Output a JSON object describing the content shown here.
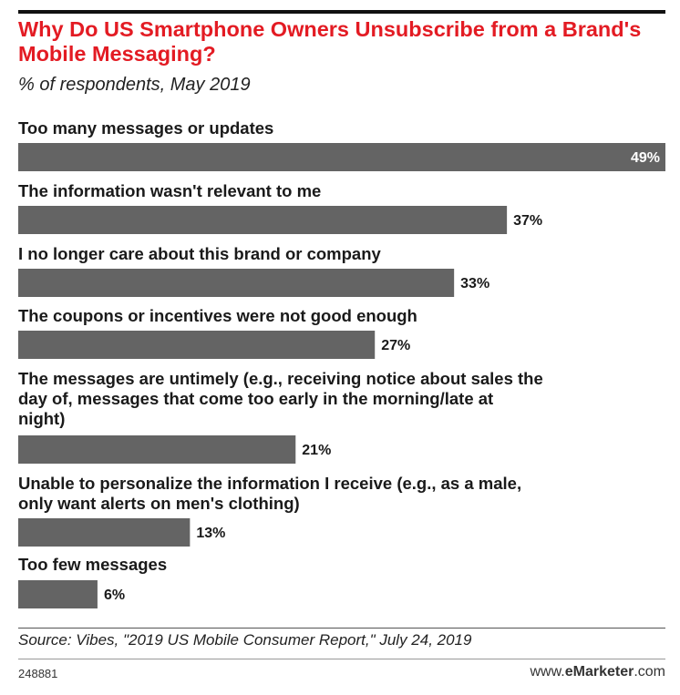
{
  "header": {
    "title": "Why Do US Smartphone Owners Unsubscribe from a Brand's Mobile Messaging?",
    "subtitle": "% of respondents, May 2019"
  },
  "colors": {
    "title": "#e31b23",
    "bar": "#646464",
    "inside_label": "#ffffff",
    "outside_label": "#1a1a1a"
  },
  "chart_data": {
    "type": "bar",
    "orientation": "horizontal",
    "categories": [
      [
        "Too many messages or updates"
      ],
      [
        "The information wasn't relevant to me"
      ],
      [
        "I no longer care about this brand or company"
      ],
      [
        "The coupons or incentives were not good enough"
      ],
      [
        "The messages are untimely (e.g., receiving notice about sales the",
        "day of, messages that come too early in the morning/late at",
        "night)"
      ],
      [
        "Unable to personalize the information I receive (e.g., as a male,",
        "only want alerts on men's clothing)"
      ],
      [
        "Too few messages"
      ]
    ],
    "values": [
      49,
      37,
      33,
      27,
      21,
      13,
      6
    ],
    "value_labels": [
      "49%",
      "37%",
      "33%",
      "27%",
      "21%",
      "13%",
      "6%"
    ],
    "unit": "%",
    "xlim": [
      0,
      49
    ],
    "grid": false,
    "legend": "none"
  },
  "footer": {
    "source": "Source: Vibes, \"2019 US Mobile Consumer Report,\" July 24, 2019",
    "chart_id": "248881",
    "brand_prefix": "www.",
    "brand_name": "eMarketer",
    "brand_suffix": ".com"
  }
}
